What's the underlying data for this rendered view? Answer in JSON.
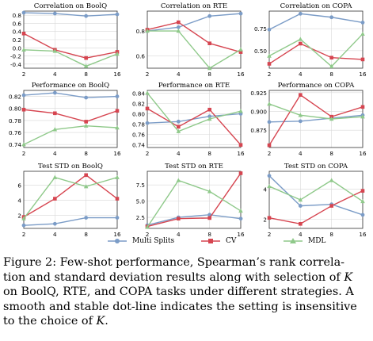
{
  "colors": {
    "multi_splits": "#7b9cc7",
    "cv": "#d64550",
    "mdl": "#8fc98a",
    "grid": "#d8d8d8",
    "axis": "#333333"
  },
  "legend": {
    "items": [
      {
        "name": "Multi Splits",
        "key": "multi_splits"
      },
      {
        "name": "CV",
        "key": "cv"
      },
      {
        "name": "MDL",
        "key": "mdl"
      }
    ]
  },
  "chart_data": [
    {
      "type": "line",
      "title": "Correlation on BoolQ",
      "x": [
        2,
        4,
        8,
        16
      ],
      "ylim": [
        -0.5,
        0.9
      ],
      "yticks": [
        -0.4,
        -0.2,
        0.0,
        0.2,
        0.4,
        0.6,
        0.8
      ],
      "ytick_labels": [
        "-0.4",
        "-0.2",
        "0.0",
        "0.2",
        "0.4",
        "0.6",
        "0.8"
      ],
      "series": [
        {
          "name": "Multi Splits",
          "values": [
            0.86,
            0.84,
            0.78,
            0.82
          ]
        },
        {
          "name": "CV",
          "values": [
            0.35,
            -0.05,
            -0.25,
            -0.1
          ]
        },
        {
          "name": "MDL",
          "values": [
            -0.05,
            -0.08,
            -0.45,
            -0.15
          ]
        }
      ]
    },
    {
      "type": "line",
      "title": "Correlation on RTE",
      "x": [
        2,
        4,
        8,
        16
      ],
      "ylim": [
        0.5,
        0.96
      ],
      "yticks": [
        0.6,
        0.8
      ],
      "ytick_labels": [
        "0.6",
        "0.8"
      ],
      "series": [
        {
          "name": "Multi Splits",
          "values": [
            0.8,
            0.83,
            0.92,
            0.94
          ]
        },
        {
          "name": "CV",
          "values": [
            0.81,
            0.87,
            0.7,
            0.63
          ]
        },
        {
          "name": "MDL",
          "values": [
            0.8,
            0.8,
            0.5,
            0.65
          ]
        }
      ]
    },
    {
      "type": "line",
      "title": "Correlation on COPA",
      "x": [
        2,
        4,
        8,
        16
      ],
      "ylim": [
        0.3,
        0.95
      ],
      "yticks": [
        0.5,
        0.75
      ],
      "ytick_labels": [
        "0.50",
        "0.75"
      ],
      "series": [
        {
          "name": "Multi Splits",
          "values": [
            0.74,
            0.92,
            0.88,
            0.82
          ]
        },
        {
          "name": "CV",
          "values": [
            0.35,
            0.58,
            0.42,
            0.4
          ]
        },
        {
          "name": "MDL",
          "values": [
            0.44,
            0.63,
            0.32,
            0.69
          ]
        }
      ]
    },
    {
      "type": "line",
      "title": "Performance on BoolQ",
      "x": [
        2,
        4,
        8,
        16
      ],
      "ylim": [
        0.735,
        0.83
      ],
      "yticks": [
        0.74,
        0.76,
        0.78,
        0.8,
        0.82
      ],
      "ytick_labels": [
        "0.74",
        "0.76",
        "0.78",
        "0.80",
        "0.82"
      ],
      "series": [
        {
          "name": "Multi Splits",
          "values": [
            0.822,
            0.826,
            0.818,
            0.82
          ]
        },
        {
          "name": "CV",
          "values": [
            0.798,
            0.792,
            0.778,
            0.796
          ]
        },
        {
          "name": "MDL",
          "values": [
            0.74,
            0.765,
            0.771,
            0.768
          ]
        }
      ]
    },
    {
      "type": "line",
      "title": "Performance on RTE",
      "x": [
        2,
        4,
        8,
        16
      ],
      "ylim": [
        0.735,
        0.845
      ],
      "yticks": [
        0.74,
        0.76,
        0.78,
        0.8,
        0.82,
        0.84
      ],
      "ytick_labels": [
        "0.74",
        "0.76",
        "0.78",
        "0.80",
        "0.82",
        "0.84"
      ],
      "series": [
        {
          "name": "Multi Splits",
          "values": [
            0.782,
            0.785,
            0.795,
            0.8
          ]
        },
        {
          "name": "CV",
          "values": [
            0.81,
            0.775,
            0.808,
            0.74
          ]
        },
        {
          "name": "MDL",
          "values": [
            0.84,
            0.766,
            0.79,
            0.805
          ]
        }
      ]
    },
    {
      "type": "line",
      "title": "Performance on COPA",
      "x": [
        2,
        4,
        8,
        16
      ],
      "ylim": [
        0.852,
        0.928
      ],
      "yticks": [
        0.875,
        0.9,
        0.925
      ],
      "ytick_labels": [
        "0.875",
        "0.900",
        "0.925"
      ],
      "series": [
        {
          "name": "Multi Splits",
          "values": [
            0.886,
            0.887,
            0.891,
            0.895
          ]
        },
        {
          "name": "CV",
          "values": [
            0.855,
            0.922,
            0.893,
            0.906
          ]
        },
        {
          "name": "MDL",
          "values": [
            0.91,
            0.895,
            0.89,
            0.893
          ]
        }
      ]
    },
    {
      "type": "line",
      "title": "Test STD on BoolQ",
      "x": [
        2,
        4,
        8,
        16
      ],
      "ylim": [
        0.3,
        7.8
      ],
      "yticks": [
        2,
        4,
        6
      ],
      "ytick_labels": [
        "2",
        "4",
        "6"
      ],
      "series": [
        {
          "name": "Multi Splits",
          "values": [
            0.7,
            0.9,
            1.7,
            1.7
          ]
        },
        {
          "name": "CV",
          "values": [
            1.8,
            4.2,
            7.3,
            4.2
          ]
        },
        {
          "name": "MDL",
          "values": [
            1.6,
            7.0,
            5.8,
            7.0
          ]
        }
      ]
    },
    {
      "type": "line",
      "title": "Test STD on RTE",
      "x": [
        2,
        4,
        8,
        16
      ],
      "ylim": [
        0.8,
        9.6
      ],
      "yticks": [
        2.5,
        5.0,
        7.5
      ],
      "ytick_labels": [
        "2.5",
        "5.0",
        "7.5"
      ],
      "series": [
        {
          "name": "Multi Splits",
          "values": [
            1.3,
            2.5,
            2.9,
            2.3
          ]
        },
        {
          "name": "CV",
          "values": [
            1.1,
            2.3,
            2.4,
            9.3
          ]
        },
        {
          "name": "MDL",
          "values": [
            1.0,
            8.2,
            6.5,
            3.5
          ]
        }
      ]
    },
    {
      "type": "line",
      "title": "Test STD on COPA",
      "x": [
        2,
        4,
        8,
        16
      ],
      "ylim": [
        1.4,
        5.2
      ],
      "yticks": [
        2,
        4
      ],
      "ytick_labels": [
        "2",
        "4"
      ],
      "series": [
        {
          "name": "Multi Splits",
          "values": [
            4.9,
            2.9,
            3.0,
            2.3
          ]
        },
        {
          "name": "CV",
          "values": [
            2.1,
            1.7,
            2.9,
            3.9
          ]
        },
        {
          "name": "MDL",
          "values": [
            4.2,
            3.3,
            4.6,
            3.2
          ]
        }
      ]
    }
  ],
  "caption": {
    "line1_a": "Figure 2: Few-shot performance, Spearman’s rank correla-",
    "line2_a": "tion and standard deviation results along with selection of ",
    "line2_k": "K",
    "line3_a": "on BoolQ, RTE, and COPA tasks under different strategies. A",
    "line4_a": "smooth and stable dot-line indicates the setting is insensitive",
    "line5_a": "to the choice of ",
    "line5_k": "K",
    "line5_b": "."
  }
}
